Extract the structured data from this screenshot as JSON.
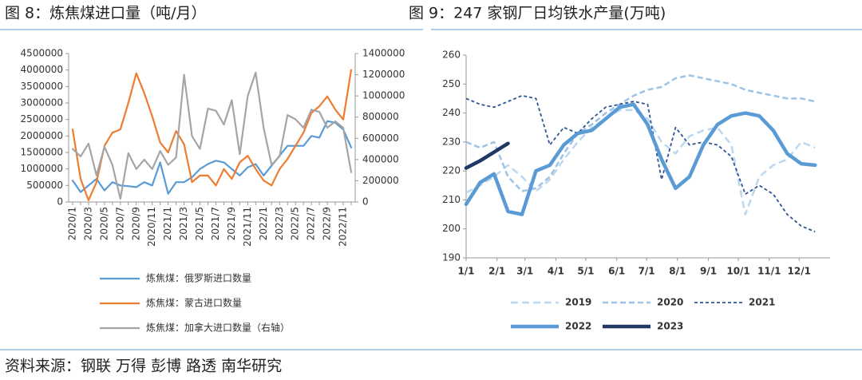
{
  "chart_data": [
    {
      "type": "line",
      "title": "图 8：炼焦煤进口量（吨/月）",
      "categories": [
        "2020/1",
        null,
        "2020/3",
        null,
        "2020/5",
        null,
        "2020/7",
        null,
        "2020/9",
        null,
        "2020/11",
        null,
        "2021/1",
        null,
        "2021/3",
        null,
        "2021/5",
        null,
        "2021/7",
        null,
        "2021/9",
        null,
        "2021/11",
        null,
        "2022/1",
        null,
        "2022/3",
        null,
        "2022/5",
        null,
        "2022/7",
        null,
        "2022/9",
        null,
        "2022/11",
        null
      ],
      "series": [
        {
          "name": "炼焦煤：俄罗斯进口数量",
          "color": "#5b9bd5",
          "style": "solid",
          "values": [
            650000,
            300000,
            500000,
            700000,
            350000,
            600000,
            500000,
            480000,
            450000,
            600000,
            500000,
            1200000,
            250000,
            600000,
            600000,
            750000,
            1000000,
            1150000,
            1250000,
            1200000,
            1000000,
            800000,
            1050000,
            1150000,
            800000,
            1100000,
            1400000,
            1700000,
            1700000,
            1700000,
            2000000,
            1950000,
            2450000,
            2400000,
            2200000,
            1650000
          ]
        },
        {
          "name": "炼焦煤：蒙古进口数量",
          "color": "#ed7d31",
          "style": "solid",
          "values": [
            2200000,
            700000,
            50000,
            600000,
            1700000,
            2100000,
            2200000,
            3000000,
            3900000,
            3300000,
            2600000,
            1800000,
            1500000,
            2150000,
            1750000,
            600000,
            800000,
            800000,
            500000,
            1000000,
            700000,
            1200000,
            1400000,
            1000000,
            650000,
            500000,
            1000000,
            1300000,
            1700000,
            2100000,
            2700000,
            2900000,
            3200000,
            2800000,
            2500000,
            4000000
          ]
        },
        {
          "name": "炼焦煤：加拿大进口数量（右轴）",
          "color": "#a5a5a5",
          "style": "solid",
          "axis": "y2",
          "values": [
            500000,
            430000,
            550000,
            250000,
            520000,
            350000,
            30000,
            460000,
            310000,
            400000,
            310000,
            480000,
            350000,
            420000,
            1200000,
            620000,
            500000,
            880000,
            860000,
            730000,
            960000,
            450000,
            1000000,
            1220000,
            700000,
            350000,
            430000,
            820000,
            780000,
            700000,
            870000,
            850000,
            700000,
            760000,
            700000,
            280000
          ]
        }
      ],
      "ylim": [
        0,
        4500000
      ],
      "yticks": [
        0,
        500000,
        1000000,
        1500000,
        2000000,
        2500000,
        3000000,
        3500000,
        4000000,
        4500000
      ],
      "y2lim": [
        0,
        1400000
      ],
      "y2ticks": [
        0,
        200000,
        400000,
        600000,
        800000,
        1000000,
        1200000,
        1400000
      ],
      "grid": false,
      "legend": "bottom"
    },
    {
      "type": "line",
      "title": "图 9：247 家钢厂日均铁水产量(万吨)",
      "x": [
        0,
        14,
        28,
        42,
        56,
        70,
        84,
        98,
        112,
        126,
        140,
        154,
        168,
        182,
        196,
        210,
        224,
        238,
        252,
        266,
        280,
        294,
        308,
        322,
        336,
        350
      ],
      "xlim": [
        0,
        365
      ],
      "xticks": [
        {
          "value": 0,
          "label": "1/1"
        },
        {
          "value": 31,
          "label": "2/1"
        },
        {
          "value": 59,
          "label": "3/1"
        },
        {
          "value": 90,
          "label": "4/1"
        },
        {
          "value": 120,
          "label": "5/1"
        },
        {
          "value": 151,
          "label": "6/1"
        },
        {
          "value": 181,
          "label": "7/1"
        },
        {
          "value": 212,
          "label": "8/1"
        },
        {
          "value": 243,
          "label": "9/1"
        },
        {
          "value": 273,
          "label": "10/1"
        },
        {
          "value": 304,
          "label": "11/1"
        },
        {
          "value": 334,
          "label": "12/1"
        }
      ],
      "series": [
        {
          "name": "2019",
          "color": "#bdd7ee",
          "style": "long-dash",
          "values": [
            212.5,
            215,
            218,
            222,
            218,
            213,
            217,
            224,
            230,
            235,
            238,
            241,
            241,
            238,
            230,
            226,
            232,
            234,
            235,
            229,
            205,
            218,
            222,
            224,
            230,
            228
          ]
        },
        {
          "name": "2020",
          "color": "#9dc3e6",
          "style": "dash",
          "values": [
            230,
            228,
            230,
            218,
            213,
            214,
            218,
            226,
            233,
            236,
            240,
            243,
            246,
            248,
            249,
            252,
            253,
            252,
            251,
            250,
            248,
            247,
            246,
            245,
            245,
            244
          ]
        },
        {
          "name": "2021",
          "color": "#2f5597",
          "style": "short-dash",
          "values": [
            245,
            243,
            242,
            244,
            246,
            245,
            229,
            235,
            233,
            238,
            242,
            243,
            244,
            243,
            217,
            235,
            229,
            230,
            229,
            225,
            212,
            215,
            212,
            205,
            201,
            199
          ]
        },
        {
          "name": "2022",
          "color": "#5b9bd5",
          "style": "thick",
          "values": [
            208.5,
            216,
            219,
            206,
            205,
            220,
            222,
            229,
            233,
            234,
            238,
            242,
            243,
            236,
            224,
            214,
            218,
            229,
            236,
            239,
            240,
            239,
            234,
            226,
            222.5,
            222
          ]
        },
        {
          "name": "2023",
          "color": "#1f3864",
          "style": "thick",
          "values": [
            221,
            223.5,
            226.5,
            229.5,
            null,
            null,
            null,
            null,
            null,
            null,
            null,
            null,
            null,
            null,
            null,
            null,
            null,
            null,
            null,
            null,
            null,
            null,
            null,
            null,
            null,
            null
          ]
        }
      ],
      "ylim": [
        190,
        260
      ],
      "yticks": [
        190,
        200,
        210,
        220,
        230,
        240,
        250,
        260
      ],
      "grid": false,
      "legend": "bottom"
    }
  ],
  "source": "资料来源：钢联 万得 彭博 路透 南华研究"
}
